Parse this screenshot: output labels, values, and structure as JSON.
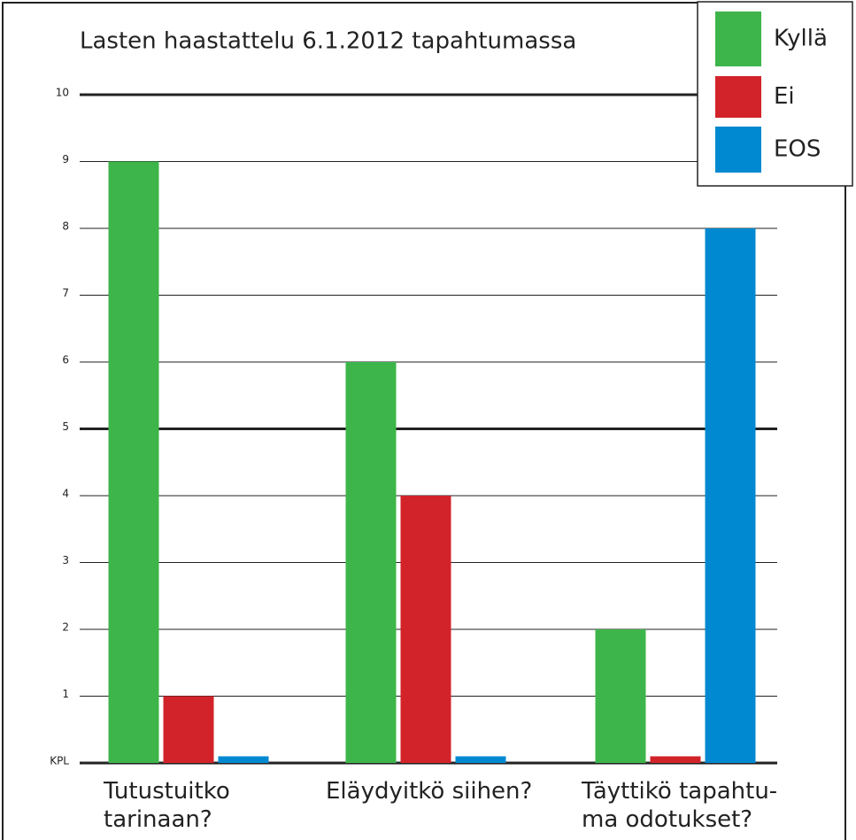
{
  "chart_data": {
    "type": "bar",
    "title": "Lasten haastattelu 6.1.2012 tapahtumassa",
    "categories": [
      "Tutustuitko\ntarinaan?",
      "Eläydyitkö siihen?",
      "Täyttikö tapahtu-\nma odotukset?"
    ],
    "series": [
      {
        "name": "Kyllä",
        "color": "#3db54a",
        "values": [
          9,
          6,
          2
        ]
      },
      {
        "name": "Ei",
        "color": "#d2232a",
        "values": [
          1,
          4,
          0.1
        ]
      },
      {
        "name": "EOS",
        "color": "#0089d0",
        "values": [
          0.1,
          0.1,
          8
        ]
      }
    ],
    "ylim": [
      0,
      10
    ],
    "yticks": [
      {
        "value": 0,
        "label": "KPL"
      },
      1,
      2,
      3,
      4,
      5,
      6,
      7,
      8,
      9,
      10
    ],
    "grid": true,
    "legend": "top-right"
  }
}
